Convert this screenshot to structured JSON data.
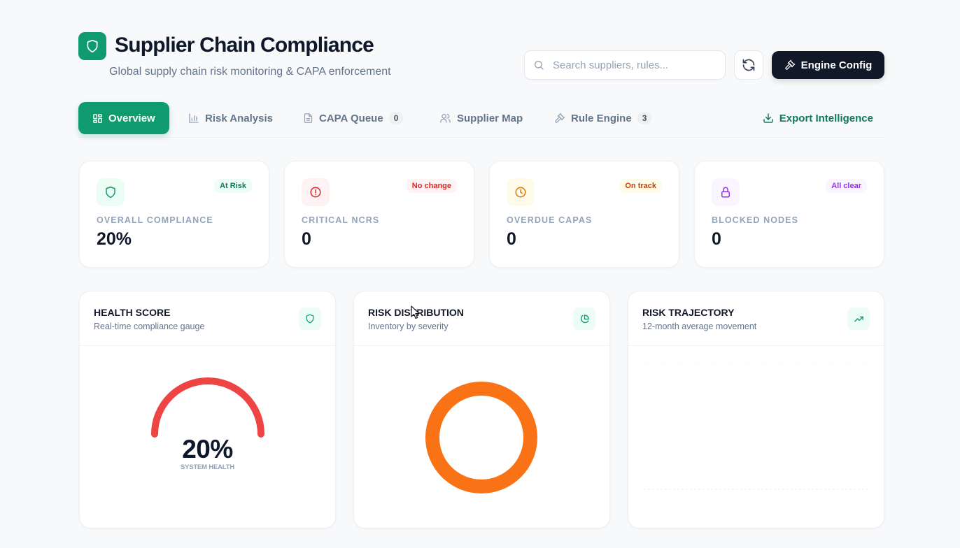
{
  "header": {
    "title": "Supplier Chain Compliance",
    "subtitle": "Global supply chain risk monitoring & CAPA enforcement",
    "logo_icon": "shield-icon",
    "search_placeholder": "Search suppliers, rules...",
    "search_value": "",
    "refresh_icon": "refresh-icon",
    "engine_button_label": "Engine Config"
  },
  "tabs": [
    {
      "label": "Overview",
      "icon": "grid-icon",
      "active": true
    },
    {
      "label": "Risk Analysis",
      "icon": "bar-chart-icon"
    },
    {
      "label": "CAPA Queue",
      "icon": "document-icon",
      "badge": "0"
    },
    {
      "label": "Supplier Map",
      "icon": "users-icon"
    },
    {
      "label": "Rule Engine",
      "icon": "gavel-icon",
      "badge": "3"
    }
  ],
  "export_label": "Export Intelligence",
  "stats": [
    {
      "label": "OVERALL COMPLIANCE",
      "value": "20%",
      "badge": "At Risk",
      "icon": "shield-icon",
      "accent": "#0f9b6e",
      "badge_bg": "#ecfdf5",
      "icon_bg": "#ecfdf5"
    },
    {
      "label": "CRITICAL NCRS",
      "value": "0",
      "badge": "No change",
      "icon": "alert-circle-icon",
      "accent": "#dc2626",
      "badge_bg": "#fef2f2",
      "icon_bg": "#fef2f2"
    },
    {
      "label": "OVERDUE CAPAS",
      "value": "0",
      "badge": "On track",
      "icon": "clock-icon",
      "accent": "#d97706",
      "badge_bg": "#fffbeb",
      "icon_bg": "#fffbeb"
    },
    {
      "label": "BLOCKED NODES",
      "value": "0",
      "badge": "All clear",
      "icon": "lock-icon",
      "accent": "#9333ea",
      "badge_bg": "#faf5ff",
      "icon_bg": "#faf5ff"
    }
  ],
  "panels": {
    "health": {
      "title": "HEALTH SCORE",
      "subtitle": "Real-time compliance gauge",
      "icon": "shield-icon",
      "value": "20%",
      "label": "SYSTEM HEALTH",
      "level": 0.2,
      "color": "#ef4444"
    },
    "distribution": {
      "title": "RISK DISTRIBUTION",
      "subtitle": "Inventory by severity",
      "icon": "pie-chart-icon",
      "color": "#f97316"
    },
    "trajectory": {
      "title": "RISK TRAJECTORY",
      "subtitle": "12-month average movement",
      "icon": "trending-up-icon"
    }
  },
  "colors": {
    "primary": "#0f9b6e",
    "dark_button": "#111827",
    "background": "#f8f9fa"
  }
}
